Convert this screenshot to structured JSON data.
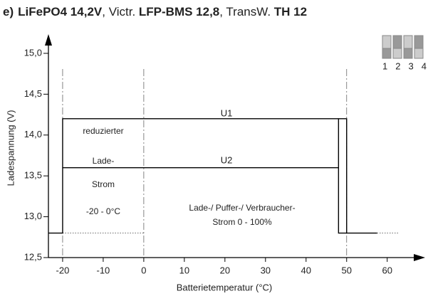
{
  "chart_data": {
    "type": "line",
    "title_parts": [
      {
        "text": "e)",
        "bold": true
      },
      {
        "text": "LiFePO4  14,2V",
        "bold": true
      },
      {
        "text": ",  Victr. ",
        "bold": false
      },
      {
        "text": "LFP-BMS 12,8",
        "bold": true
      },
      {
        "text": ", TransW. ",
        "bold": false
      },
      {
        "text": "TH 12",
        "bold": true
      }
    ],
    "x_label": "Batterietemperatur (°C)",
    "y_label": "Ladespannung (V)",
    "xlim": [
      -23.5,
      69
    ],
    "ylim": [
      12.5,
      15.2
    ],
    "xticks": [
      -20,
      -10,
      0,
      10,
      20,
      30,
      40,
      50,
      60
    ],
    "yticks": [
      {
        "value": 12.5,
        "label": "12,5"
      },
      {
        "value": 13.0,
        "label": "13,0"
      },
      {
        "value": 13.5,
        "label": "13,5"
      },
      {
        "value": 14.0,
        "label": "14,0"
      },
      {
        "value": 14.5,
        "label": "14,5"
      },
      {
        "value": 15.0,
        "label": "15,0"
      }
    ],
    "series": [
      {
        "name": "U1",
        "color": "#000000",
        "x": [
          -23.5,
          -20,
          -20,
          50,
          50,
          57.5
        ],
        "values": [
          12.8,
          12.8,
          14.2,
          14.2,
          12.8,
          12.8
        ]
      },
      {
        "name": "U2",
        "color": "#000000",
        "x": [
          -20,
          48,
          48,
          48,
          50
        ],
        "values": [
          13.6,
          13.6,
          14.2,
          12.8,
          12.8
        ]
      }
    ],
    "vlines": [
      -20,
      0,
      50
    ],
    "dotted": [
      {
        "x": [
          -20,
          0
        ],
        "y": 12.8
      },
      {
        "x": [
          57.5,
          63
        ],
        "y": 12.8
      }
    ],
    "annotations": [
      "reduzierter",
      "Lade-",
      "Strom",
      "-20 - 0°C",
      "Lade-/ Puffer-/ Verbraucher-",
      "Strom  0 - 100%"
    ],
    "dip_labels": "1 2 3 4"
  }
}
